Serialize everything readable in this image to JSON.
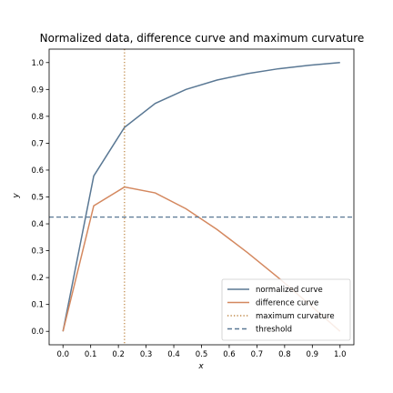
{
  "chart_data": {
    "type": "line",
    "title": "Normalized data, difference curve and maximum curvature",
    "xlabel": "x",
    "ylabel": "y",
    "xlim": [
      -0.05,
      1.05
    ],
    "ylim": [
      -0.05,
      1.05
    ],
    "xticks": [
      "0.0",
      "0.1",
      "0.2",
      "0.3",
      "0.4",
      "0.5",
      "0.6",
      "0.7",
      "0.8",
      "0.9",
      "1.0"
    ],
    "yticks": [
      "0.0",
      "0.1",
      "0.2",
      "0.3",
      "0.4",
      "0.5",
      "0.6",
      "0.7",
      "0.8",
      "0.9",
      "1.0"
    ],
    "grid": false,
    "legend_position": "lower-right",
    "series": [
      {
        "name": "normalized curve",
        "color": "#5a7894",
        "x": [
          0.0,
          0.111,
          0.222,
          0.333,
          0.444,
          0.556,
          0.667,
          0.778,
          0.889,
          1.0
        ],
        "y": [
          0.0,
          0.578,
          0.759,
          0.848,
          0.9,
          0.935,
          0.959,
          0.977,
          0.99,
          1.0
        ]
      },
      {
        "name": "difference curve",
        "color": "#d4885f",
        "x": [
          0.0,
          0.111,
          0.222,
          0.333,
          0.444,
          0.556,
          0.667,
          0.778,
          0.889,
          1.0
        ],
        "y": [
          0.0,
          0.467,
          0.537,
          0.515,
          0.456,
          0.379,
          0.292,
          0.199,
          0.101,
          0.0
        ]
      }
    ],
    "max_curvature": {
      "name": "maximum curvature",
      "x": 0.222,
      "color": "#c08a4a"
    },
    "threshold": {
      "name": "threshold",
      "y": 0.425,
      "color": "#5a7894"
    }
  }
}
